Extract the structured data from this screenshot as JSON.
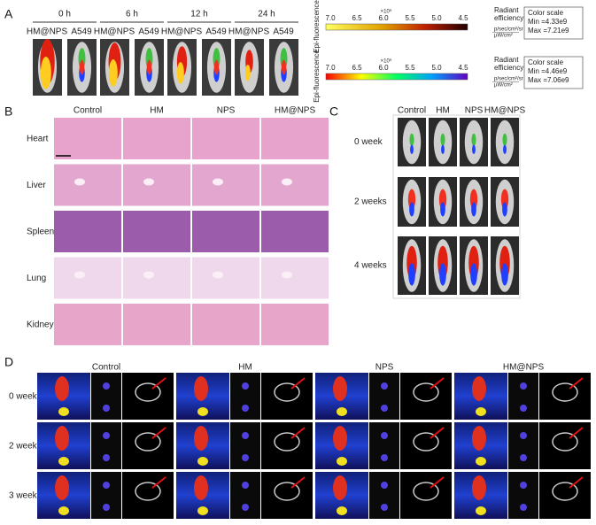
{
  "panel_a": {
    "label": "A",
    "timepoints": [
      "0 h",
      "6 h",
      "12 h",
      "24 h"
    ],
    "groups": [
      "HM@NPS",
      "A549"
    ],
    "scales": [
      {
        "axis_label": "Epi-fluorescence",
        "ticks": [
          "7.0",
          "6.5",
          "6.0",
          "5.5",
          "5.0",
          "4.5"
        ],
        "exponent": "×10⁹",
        "title_lines": [
          "Radiant",
          "efficiency"
        ],
        "unit_lines": [
          "p/sec/cm²/sr",
          "µW/cm²"
        ],
        "box_title": "Color scale",
        "min": "Min =4.33e9",
        "max": "Max =7.21e9"
      },
      {
        "axis_label": "Epi-fluorescence",
        "ticks": [
          "7.0",
          "6.5",
          "6.0",
          "5.5",
          "5.0",
          "4.5"
        ],
        "exponent": "×10⁹",
        "title_lines": [
          "Radiant",
          "efficiency"
        ],
        "unit_lines": [
          "p/sec/cm²/sr",
          "µW/cm²"
        ],
        "box_title": "Color scale",
        "min": "Min =4.46e9",
        "max": "Max =7.06e9"
      }
    ]
  },
  "panel_b": {
    "label": "B",
    "columns": [
      "Control",
      "HM",
      "NPS",
      "HM@NPS"
    ],
    "rows": [
      "Heart",
      "Liver",
      "Spleen",
      "Lung",
      "Kidney"
    ]
  },
  "panel_c": {
    "label": "C",
    "columns": [
      "Control",
      "HM",
      "NPS",
      "HM@NPS"
    ],
    "rows": [
      "0 week",
      "2 weeks",
      "4 weeks"
    ]
  },
  "panel_d": {
    "label": "D",
    "columns": [
      "Control",
      "HM",
      "NPS",
      "HM@NPS"
    ],
    "rows": [
      "0 week",
      "2 weeks",
      "3 weeks"
    ]
  }
}
